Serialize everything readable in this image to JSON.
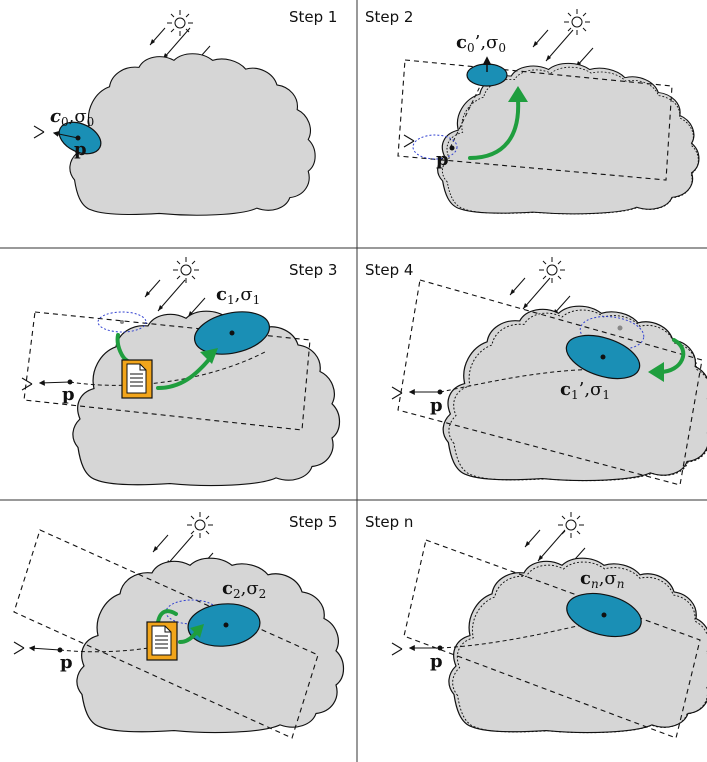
{
  "steps": [
    {
      "title": "Step 1"
    },
    {
      "title": "Step 2"
    },
    {
      "title": "Step 3"
    },
    {
      "title": "Step 4"
    },
    {
      "title": "Step 5"
    },
    {
      "title": "Step n"
    }
  ],
  "labels": {
    "c0": "c",
    "c0_sub": "0",
    "sigma0": ",σ",
    "sigma0_sub": "0",
    "c0prime": "c",
    "c0prime_sub": "0",
    "c0prime_mark": "’,σ",
    "c0prime_sigma_sub": "0",
    "c1": "c",
    "c1_sub": "1",
    "sigma1": ",σ",
    "sigma1_sub": "1",
    "c1prime": "c",
    "c1prime_sub": "1",
    "c1prime_mark": "’,σ",
    "c1prime_sigma_sub": "1",
    "c2": "c",
    "c2_sub": "2",
    "sigma2": ",σ",
    "sigma2_sub": "2",
    "cn": "c",
    "cn_sub": "n",
    "sigman": ",σ",
    "sigman_sub": "n",
    "p": "p"
  },
  "colors": {
    "cloud": "#d6d6d6",
    "ellipse": "#1a8fb5",
    "arrow": "#1f9e3e",
    "doc": "#f2a51b"
  },
  "icons": [
    "sun-icon",
    "eye-icon",
    "document-icon"
  ]
}
